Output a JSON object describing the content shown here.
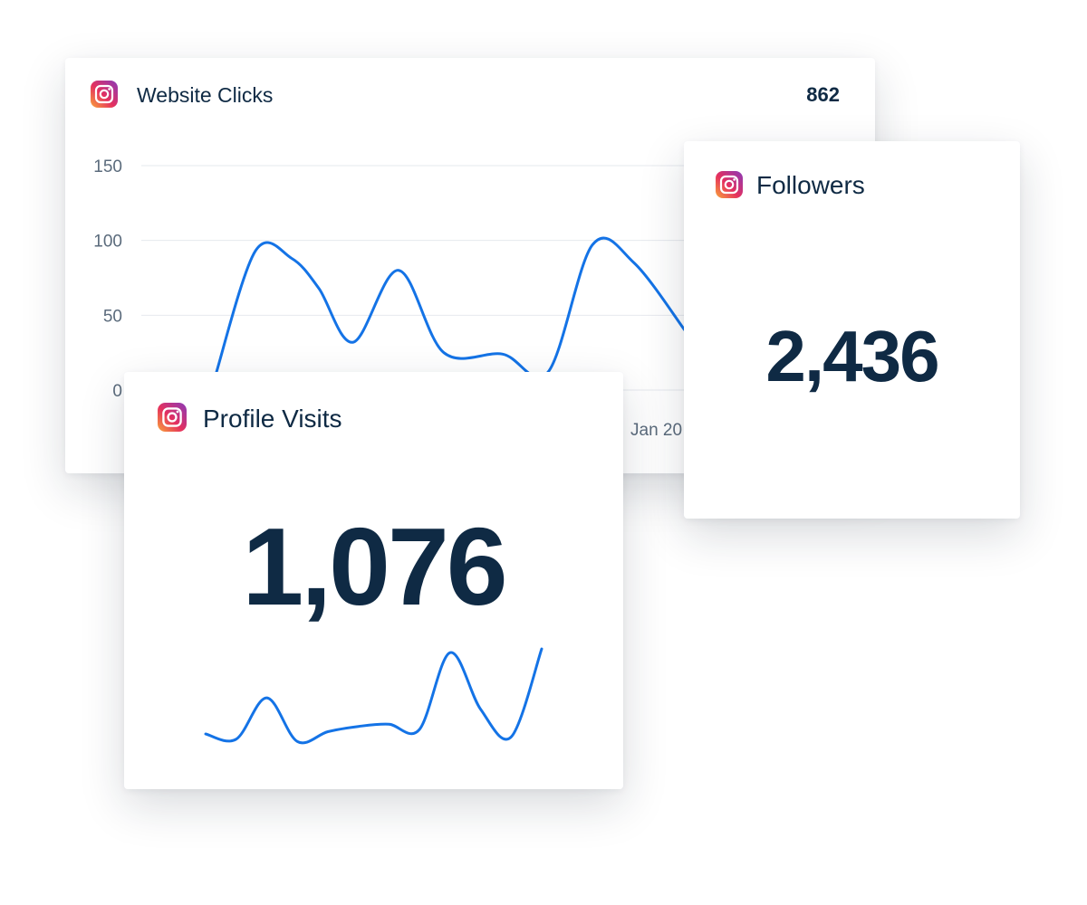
{
  "colors": {
    "accent_line": "#1473e6",
    "text_dark": "#0f2a44",
    "axis_text": "#5b6b7c",
    "gridline": "#e6e9ee"
  },
  "website_clicks": {
    "icon": "instagram-icon",
    "title": "Website Clicks",
    "total": "862",
    "x_tick_visible": "Jan 20",
    "chart_data": {
      "type": "line",
      "ylim": [
        0,
        150
      ],
      "yticks": [
        "0",
        "50",
        "100",
        "150"
      ],
      "grid": true,
      "values": [
        8,
        93,
        88,
        68,
        32,
        80,
        25,
        24,
        12,
        97,
        85,
        40
      ]
    }
  },
  "followers": {
    "icon": "instagram-icon",
    "title": "Followers",
    "value": "2,436"
  },
  "profile_visits": {
    "icon": "instagram-icon",
    "title": "Profile Visits",
    "value": "1,076",
    "sparkline": [
      12,
      5,
      60,
      2,
      15,
      22,
      25,
      18,
      120,
      45,
      8,
      125
    ]
  }
}
